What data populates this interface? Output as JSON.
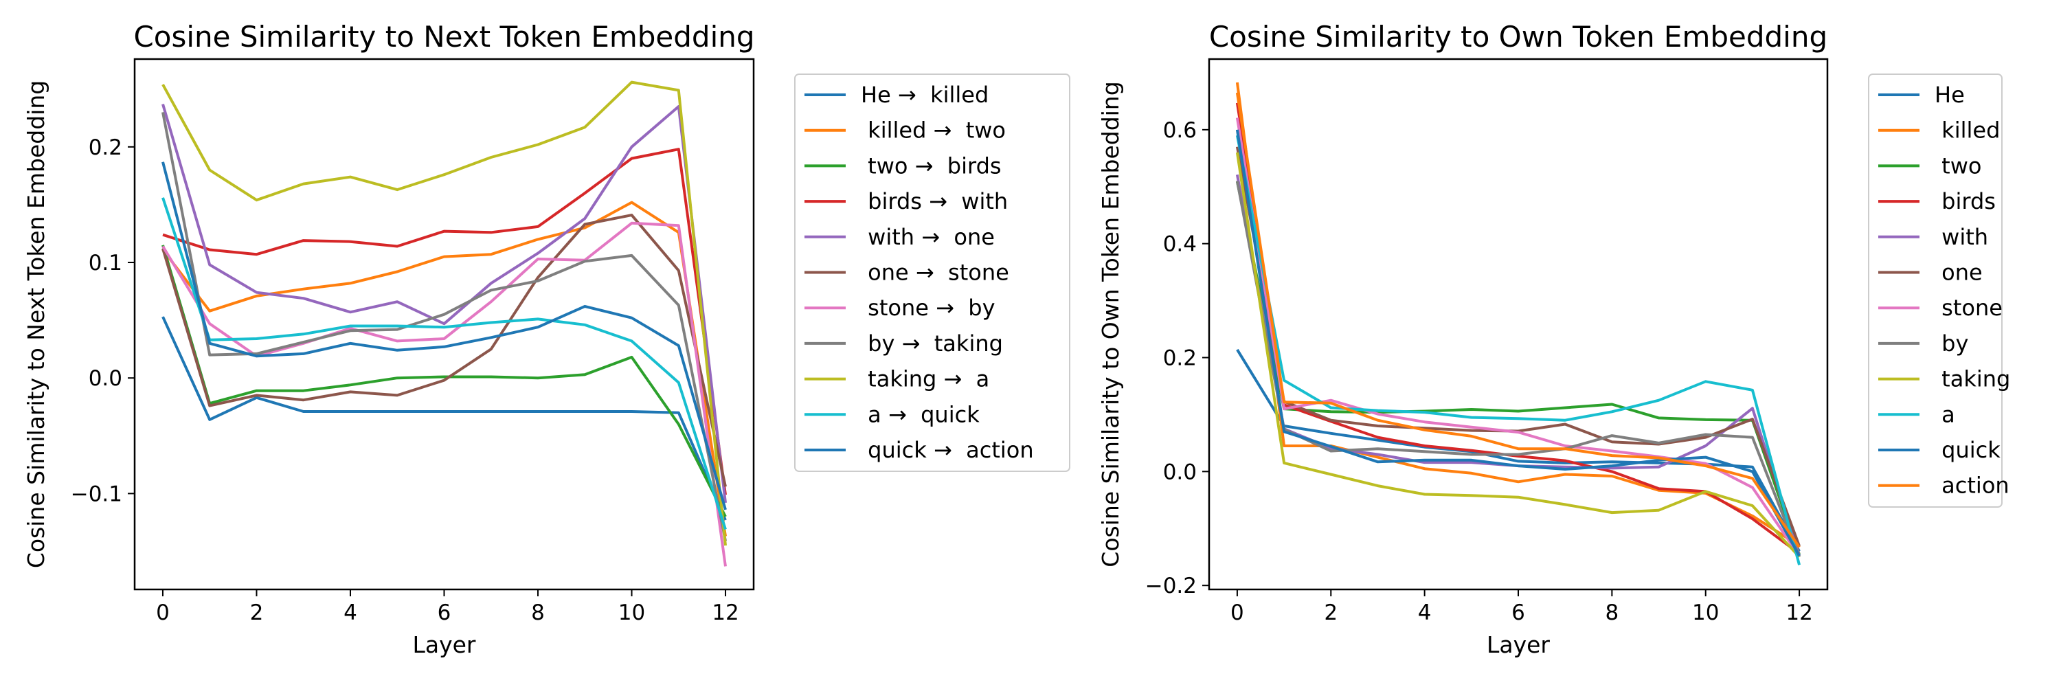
{
  "figure": {
    "background": "#ffffff"
  },
  "chart_data": [
    {
      "type": "line",
      "title": "Cosine Similarity to Next Token Embedding",
      "xlabel": "Layer",
      "ylabel": "Cosine Similarity to Next Token Embedding",
      "xlim": [
        -0.6,
        12.6
      ],
      "ylim": [
        -0.183,
        0.276
      ],
      "xticks": [
        0,
        2,
        4,
        6,
        8,
        10,
        12
      ],
      "yticks": [
        -0.1,
        0.0,
        0.1,
        0.2
      ],
      "ytick_labels": [
        "−0.1",
        "0.0",
        "0.1",
        "0.2"
      ],
      "grid": false,
      "legend_position": "outside-right",
      "x": [
        0,
        1,
        2,
        3,
        4,
        5,
        6,
        7,
        8,
        9,
        10,
        11,
        12
      ],
      "series": [
        {
          "name": "He →  killed",
          "color": "#1f77b4",
          "values": [
            0.053,
            -0.036,
            -0.017,
            -0.029,
            -0.029,
            -0.029,
            -0.029,
            -0.029,
            -0.029,
            -0.029,
            -0.029,
            -0.03,
            -0.123
          ]
        },
        {
          "name": " killed →  two",
          "color": "#ff7f0e",
          "values": [
            0.111,
            0.058,
            0.071,
            0.077,
            0.082,
            0.092,
            0.105,
            0.107,
            0.12,
            0.13,
            0.152,
            0.126,
            -0.137
          ]
        },
        {
          "name": " two →  birds",
          "color": "#2ca02c",
          "values": [
            0.115,
            -0.022,
            -0.011,
            -0.011,
            -0.006,
            0.0,
            0.001,
            0.001,
            0.0,
            0.003,
            0.018,
            -0.04,
            -0.12
          ]
        },
        {
          "name": " birds →  with",
          "color": "#d62728",
          "values": [
            0.124,
            0.111,
            0.107,
            0.119,
            0.118,
            0.114,
            0.127,
            0.126,
            0.131,
            0.16,
            0.19,
            0.198,
            -0.101
          ]
        },
        {
          "name": " with →  one",
          "color": "#9467bd",
          "values": [
            0.237,
            0.098,
            0.074,
            0.069,
            0.057,
            0.066,
            0.047,
            0.082,
            0.108,
            0.138,
            0.2,
            0.235,
            -0.108
          ]
        },
        {
          "name": " one →  stone",
          "color": "#8c564b",
          "values": [
            0.112,
            -0.024,
            -0.015,
            -0.019,
            -0.012,
            -0.015,
            -0.002,
            0.025,
            0.087,
            0.133,
            0.141,
            0.093,
            -0.094
          ]
        },
        {
          "name": " stone →  by",
          "color": "#e377c2",
          "values": [
            0.114,
            0.047,
            0.019,
            0.03,
            0.043,
            0.032,
            0.034,
            0.066,
            0.103,
            0.102,
            0.134,
            0.132,
            -0.163
          ]
        },
        {
          "name": " by →  taking",
          "color": "#7f7f7f",
          "values": [
            0.23,
            0.02,
            0.021,
            0.031,
            0.041,
            0.042,
            0.055,
            0.076,
            0.084,
            0.101,
            0.106,
            0.063,
            -0.141
          ]
        },
        {
          "name": " taking →  a",
          "color": "#bcbd22",
          "values": [
            0.254,
            0.18,
            0.154,
            0.168,
            0.174,
            0.163,
            0.176,
            0.191,
            0.202,
            0.217,
            0.256,
            0.249,
            -0.145
          ]
        },
        {
          "name": " a →  quick",
          "color": "#17becf",
          "values": [
            0.156,
            0.033,
            0.034,
            0.038,
            0.045,
            0.045,
            0.044,
            0.048,
            0.051,
            0.046,
            0.032,
            -0.004,
            -0.131
          ]
        },
        {
          "name": " quick →  action",
          "color": "#1f77b4",
          "values": [
            0.187,
            0.03,
            0.019,
            0.021,
            0.03,
            0.024,
            0.027,
            0.035,
            0.044,
            0.062,
            0.052,
            0.028,
            -0.114
          ]
        }
      ]
    },
    {
      "type": "line",
      "title": "Cosine Similarity to Own Token Embedding",
      "xlabel": "Layer",
      "ylabel": "Cosine Similarity to Own Token Embedding",
      "xlim": [
        -0.6,
        12.6
      ],
      "ylim": [
        -0.207,
        0.724
      ],
      "xticks": [
        0,
        2,
        4,
        6,
        8,
        10,
        12
      ],
      "yticks": [
        -0.2,
        0.0,
        0.2,
        0.4,
        0.6
      ],
      "ytick_labels": [
        "−0.2",
        "0.0",
        "0.2",
        "0.4",
        "0.6"
      ],
      "grid": false,
      "legend_position": "outside-right",
      "x": [
        0,
        1,
        2,
        3,
        4,
        5,
        6,
        7,
        8,
        9,
        10,
        11,
        12
      ],
      "series": [
        {
          "name": "He",
          "color": "#1f77b4",
          "values": [
            0.214,
            0.08,
            0.067,
            0.055,
            0.043,
            0.035,
            0.018,
            0.015,
            0.017,
            0.015,
            0.013,
            0.008,
            -0.14
          ]
        },
        {
          "name": " killed",
          "color": "#ff7f0e",
          "values": [
            0.683,
            0.045,
            0.045,
            0.025,
            0.005,
            -0.003,
            -0.018,
            -0.005,
            -0.008,
            -0.033,
            -0.038,
            -0.078,
            -0.13
          ]
        },
        {
          "name": " two",
          "color": "#2ca02c",
          "values": [
            0.509,
            0.11,
            0.105,
            0.104,
            0.106,
            0.109,
            0.106,
            0.112,
            0.118,
            0.094,
            0.091,
            0.09,
            -0.146
          ]
        },
        {
          "name": " birds",
          "color": "#d62728",
          "values": [
            0.647,
            0.117,
            0.088,
            0.06,
            0.045,
            0.037,
            0.027,
            0.019,
            0.0,
            -0.03,
            -0.035,
            -0.083,
            -0.144
          ]
        },
        {
          "name": " with",
          "color": "#9467bd",
          "values": [
            0.521,
            0.075,
            0.041,
            0.03,
            0.016,
            0.016,
            0.01,
            0.008,
            0.006,
            0.008,
            0.045,
            0.111,
            -0.148
          ]
        },
        {
          "name": " one",
          "color": "#8c564b",
          "values": [
            0.57,
            0.123,
            0.09,
            0.08,
            0.076,
            0.072,
            0.071,
            0.083,
            0.052,
            0.048,
            0.06,
            0.092,
            -0.131
          ]
        },
        {
          "name": " stone",
          "color": "#e377c2",
          "values": [
            0.621,
            0.11,
            0.125,
            0.101,
            0.087,
            0.078,
            0.069,
            0.045,
            0.036,
            0.026,
            0.014,
            -0.028,
            -0.148
          ]
        },
        {
          "name": " by",
          "color": "#7f7f7f",
          "values": [
            0.51,
            0.074,
            0.036,
            0.04,
            0.035,
            0.03,
            0.03,
            0.04,
            0.063,
            0.05,
            0.065,
            0.06,
            -0.15
          ]
        },
        {
          "name": " taking",
          "color": "#bcbd22",
          "values": [
            0.56,
            0.015,
            -0.005,
            -0.025,
            -0.04,
            -0.042,
            -0.045,
            -0.058,
            -0.072,
            -0.068,
            -0.035,
            -0.06,
            -0.15
          ]
        },
        {
          "name": " a",
          "color": "#17becf",
          "values": [
            0.59,
            0.16,
            0.112,
            0.107,
            0.104,
            0.095,
            0.093,
            0.09,
            0.105,
            0.125,
            0.158,
            0.143,
            -0.164
          ]
        },
        {
          "name": " quick",
          "color": "#1f77b4",
          "values": [
            0.6,
            0.07,
            0.044,
            0.017,
            0.02,
            0.02,
            0.01,
            0.004,
            0.01,
            0.02,
            0.025,
            0.0,
            -0.148
          ]
        },
        {
          "name": " action",
          "color": "#ff7f0e",
          "values": [
            0.665,
            0.122,
            0.12,
            0.09,
            0.073,
            0.062,
            0.04,
            0.04,
            0.028,
            0.024,
            0.01,
            -0.012,
            -0.133
          ]
        }
      ]
    }
  ]
}
